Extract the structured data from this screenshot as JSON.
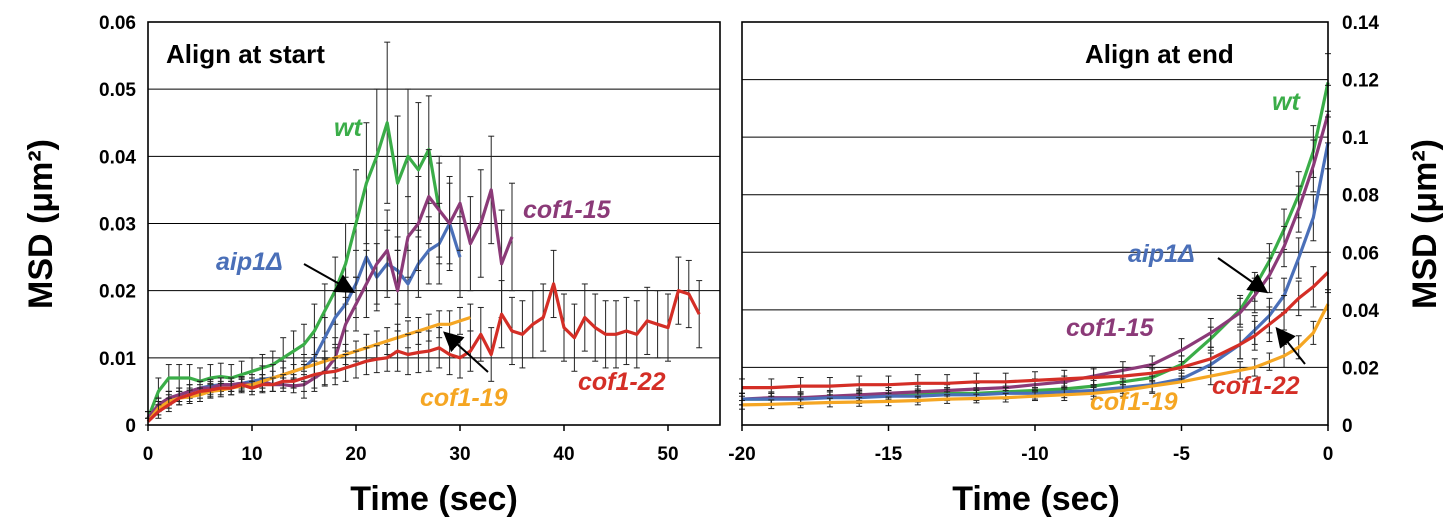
{
  "colors": {
    "wt": "#3aad48",
    "aip1": "#4a6fb8",
    "cof1_15": "#8b3a78",
    "cof1_19": "#f5a623",
    "cof1_22": "#d42e26"
  },
  "chart_data": [
    {
      "type": "line",
      "title": "Align at start",
      "xlabel": "Time (sec)",
      "ylabel": "MSD (μm²)",
      "xlim": [
        0,
        55
      ],
      "ylim": [
        0,
        0.06
      ],
      "xticks": [
        "0",
        "10",
        "20",
        "30",
        "40",
        "50"
      ],
      "yticks": [
        "0",
        "0.01",
        "0.02",
        "0.03",
        "0.04",
        "0.05",
        "0.06"
      ],
      "grid": "horizontal",
      "series": [
        {
          "name": "wt",
          "color": "#3aad48",
          "x": [
            0,
            1,
            2,
            3,
            4,
            5,
            6,
            7,
            8,
            9,
            10,
            11,
            12,
            13,
            14,
            15,
            16,
            17,
            18,
            19,
            20,
            21,
            22,
            23,
            24,
            25,
            26,
            27,
            28
          ],
          "y": [
            0.001,
            0.005,
            0.007,
            0.007,
            0.007,
            0.0065,
            0.007,
            0.0072,
            0.007,
            0.0075,
            0.008,
            0.0085,
            0.009,
            0.01,
            0.011,
            0.012,
            0.014,
            0.017,
            0.02,
            0.024,
            0.03,
            0.036,
            0.04,
            0.045,
            0.036,
            0.04,
            0.038,
            0.041,
            0.032
          ],
          "err": [
            0.001,
            0.002,
            0.002,
            0.002,
            0.002,
            0.002,
            0.002,
            0.002,
            0.002,
            0.002,
            0.002,
            0.002,
            0.002,
            0.003,
            0.003,
            0.003,
            0.004,
            0.004,
            0.005,
            0.006,
            0.008,
            0.009,
            0.01,
            0.012,
            0.01,
            0.01,
            0.01,
            0.008,
            0.008
          ]
        },
        {
          "name": "aip1Δ",
          "color": "#4a6fb8",
          "x": [
            0,
            1,
            2,
            3,
            4,
            5,
            6,
            7,
            8,
            9,
            10,
            11,
            12,
            13,
            14,
            15,
            16,
            17,
            18,
            19,
            20,
            21,
            22,
            23,
            24,
            25,
            26,
            27,
            28,
            29,
            30
          ],
          "y": [
            0.001,
            0.003,
            0.004,
            0.0045,
            0.005,
            0.0055,
            0.0058,
            0.006,
            0.006,
            0.0062,
            0.0065,
            0.0068,
            0.007,
            0.0075,
            0.008,
            0.0085,
            0.01,
            0.013,
            0.016,
            0.018,
            0.021,
            0.025,
            0.022,
            0.024,
            0.023,
            0.021,
            0.024,
            0.026,
            0.027,
            0.03,
            0.025
          ],
          "err": [
            0.001,
            0.001,
            0.001,
            0.001,
            0.001,
            0.001,
            0.001,
            0.001,
            0.001,
            0.001,
            0.001,
            0.002,
            0.002,
            0.002,
            0.002,
            0.002,
            0.003,
            0.003,
            0.004,
            0.004,
            0.005,
            0.005,
            0.005,
            0.005,
            0.005,
            0.005,
            0.005,
            0.005,
            0.006,
            0.006,
            0.006
          ]
        },
        {
          "name": "cof1-15",
          "color": "#8b3a78",
          "x": [
            0,
            1,
            2,
            3,
            4,
            5,
            6,
            7,
            8,
            9,
            10,
            11,
            12,
            13,
            14,
            15,
            16,
            17,
            18,
            19,
            20,
            21,
            22,
            23,
            24,
            25,
            26,
            27,
            28,
            29,
            30,
            31,
            32,
            33,
            34,
            35
          ],
          "y": [
            0.001,
            0.003,
            0.004,
            0.0045,
            0.005,
            0.0055,
            0.0055,
            0.006,
            0.006,
            0.0062,
            0.006,
            0.0065,
            0.006,
            0.006,
            0.0058,
            0.006,
            0.007,
            0.008,
            0.01,
            0.015,
            0.018,
            0.021,
            0.024,
            0.026,
            0.02,
            0.028,
            0.03,
            0.034,
            0.032,
            0.03,
            0.033,
            0.027,
            0.03,
            0.035,
            0.024,
            0.028
          ],
          "err": [
            0.001,
            0.001,
            0.001,
            0.001,
            0.001,
            0.001,
            0.001,
            0.001,
            0.001,
            0.001,
            0.001,
            0.001,
            0.001,
            0.001,
            0.001,
            0.002,
            0.002,
            0.002,
            0.003,
            0.004,
            0.004,
            0.005,
            0.006,
            0.006,
            0.006,
            0.006,
            0.007,
            0.007,
            0.007,
            0.007,
            0.007,
            0.007,
            0.008,
            0.008,
            0.008,
            0.008
          ]
        },
        {
          "name": "cof1-19",
          "color": "#f5a623",
          "x": [
            0,
            1,
            2,
            3,
            4,
            5,
            6,
            7,
            8,
            9,
            10,
            11,
            12,
            13,
            14,
            15,
            16,
            17,
            18,
            19,
            20,
            21,
            22,
            23,
            24,
            25,
            26,
            27,
            28,
            29,
            30,
            31
          ],
          "y": [
            0.0005,
            0.0025,
            0.0035,
            0.004,
            0.0042,
            0.0045,
            0.005,
            0.0052,
            0.0055,
            0.0058,
            0.006,
            0.0065,
            0.007,
            0.0075,
            0.008,
            0.0085,
            0.009,
            0.0095,
            0.01,
            0.0105,
            0.011,
            0.0115,
            0.012,
            0.0125,
            0.013,
            0.0135,
            0.014,
            0.0145,
            0.015,
            0.015,
            0.0155,
            0.016
          ],
          "err": [
            0.0005,
            0.001,
            0.001,
            0.001,
            0.001,
            0.001,
            0.001,
            0.001,
            0.001,
            0.001,
            0.001,
            0.001,
            0.001,
            0.001,
            0.001,
            0.001,
            0.0015,
            0.0015,
            0.0015,
            0.0015,
            0.0015,
            0.002,
            0.002,
            0.002,
            0.002,
            0.002,
            0.002,
            0.002,
            0.002,
            0.002,
            0.002,
            0.002
          ]
        },
        {
          "name": "cof1-22",
          "color": "#d42e26",
          "x": [
            0,
            1,
            2,
            3,
            4,
            5,
            6,
            7,
            8,
            9,
            10,
            11,
            12,
            13,
            14,
            15,
            16,
            17,
            18,
            19,
            20,
            21,
            22,
            23,
            24,
            25,
            26,
            27,
            28,
            29,
            30,
            31,
            32,
            33,
            34,
            35,
            36,
            37,
            38,
            39,
            40,
            41,
            42,
            43,
            44,
            45,
            46,
            47,
            48,
            49,
            50,
            51,
            52,
            53
          ],
          "y": [
            0.0005,
            0.002,
            0.003,
            0.004,
            0.0045,
            0.005,
            0.0052,
            0.0055,
            0.0055,
            0.006,
            0.0055,
            0.006,
            0.006,
            0.0065,
            0.0065,
            0.007,
            0.0075,
            0.0078,
            0.008,
            0.0085,
            0.009,
            0.0095,
            0.0098,
            0.01,
            0.011,
            0.0105,
            0.0108,
            0.011,
            0.0115,
            0.0105,
            0.01,
            0.011,
            0.0135,
            0.0105,
            0.0165,
            0.014,
            0.0135,
            0.015,
            0.016,
            0.021,
            0.0145,
            0.013,
            0.016,
            0.0145,
            0.0135,
            0.0135,
            0.014,
            0.0135,
            0.0155,
            0.015,
            0.0145,
            0.02,
            0.0195,
            0.0165
          ],
          "err": [
            0.0005,
            0.001,
            0.001,
            0.001,
            0.001,
            0.001,
            0.001,
            0.001,
            0.001,
            0.001,
            0.001,
            0.001,
            0.001,
            0.001,
            0.001,
            0.002,
            0.002,
            0.002,
            0.002,
            0.002,
            0.002,
            0.002,
            0.002,
            0.002,
            0.003,
            0.003,
            0.003,
            0.003,
            0.003,
            0.003,
            0.003,
            0.003,
            0.004,
            0.004,
            0.005,
            0.005,
            0.005,
            0.005,
            0.005,
            0.005,
            0.005,
            0.005,
            0.005,
            0.005,
            0.005,
            0.005,
            0.005,
            0.005,
            0.005,
            0.005,
            0.005,
            0.005,
            0.005,
            0.005
          ]
        }
      ]
    },
    {
      "type": "line",
      "title": "Align at end",
      "xlabel": "Time (sec)",
      "ylabel": "MSD (μm²)",
      "xlim": [
        -20,
        0
      ],
      "ylim": [
        0,
        0.14
      ],
      "xticks": [
        "-20",
        "-15",
        "-10",
        "-5",
        "0"
      ],
      "yticks": [
        "0",
        "0.02",
        "0.04",
        "0.06",
        "0.08",
        "0.1",
        "0.12",
        "0.14"
      ],
      "grid": "horizontal",
      "series": [
        {
          "name": "wt",
          "color": "#3aad48",
          "x": [
            -20,
            -19,
            -18,
            -17,
            -16,
            -15,
            -14,
            -13,
            -12,
            -11,
            -10,
            -9,
            -8,
            -7,
            -6,
            -5,
            -4,
            -3,
            -2.5,
            -2,
            -1.5,
            -1,
            -0.5,
            0
          ],
          "y": [
            0.009,
            0.009,
            0.0095,
            0.0095,
            0.01,
            0.01,
            0.0105,
            0.011,
            0.011,
            0.0115,
            0.012,
            0.0125,
            0.0135,
            0.015,
            0.0165,
            0.021,
            0.03,
            0.04,
            0.048,
            0.057,
            0.068,
            0.08,
            0.095,
            0.119
          ],
          "err": [
            0.002,
            0.002,
            0.002,
            0.002,
            0.002,
            0.002,
            0.002,
            0.002,
            0.002,
            0.002,
            0.002,
            0.002,
            0.002,
            0.002,
            0.003,
            0.003,
            0.004,
            0.005,
            0.005,
            0.006,
            0.007,
            0.008,
            0.009,
            0.01
          ]
        },
        {
          "name": "cof1-15",
          "color": "#8b3a78",
          "x": [
            -20,
            -19,
            -18,
            -17,
            -16,
            -15,
            -14,
            -13,
            -12,
            -11,
            -10,
            -9,
            -8,
            -7,
            -6,
            -5,
            -4,
            -3,
            -2.5,
            -2,
            -1.5,
            -1,
            -0.5,
            0
          ],
          "y": [
            0.009,
            0.0095,
            0.0095,
            0.01,
            0.0105,
            0.011,
            0.0115,
            0.012,
            0.0125,
            0.013,
            0.014,
            0.015,
            0.017,
            0.019,
            0.021,
            0.026,
            0.032,
            0.039,
            0.045,
            0.052,
            0.062,
            0.075,
            0.09,
            0.108
          ],
          "err": [
            0.002,
            0.002,
            0.002,
            0.002,
            0.002,
            0.002,
            0.002,
            0.002,
            0.002,
            0.002,
            0.002,
            0.002,
            0.003,
            0.003,
            0.003,
            0.004,
            0.005,
            0.005,
            0.006,
            0.006,
            0.007,
            0.008,
            0.009,
            0.01
          ]
        },
        {
          "name": "aip1Δ",
          "color": "#4a6fb8",
          "x": [
            -20,
            -19,
            -18,
            -17,
            -16,
            -15,
            -14,
            -13,
            -12,
            -11,
            -10,
            -9,
            -8,
            -7,
            -6,
            -5,
            -4,
            -3,
            -2.5,
            -2,
            -1.5,
            -1,
            -0.5,
            0
          ],
          "y": [
            0.009,
            0.009,
            0.009,
            0.0095,
            0.0095,
            0.01,
            0.01,
            0.0105,
            0.0105,
            0.011,
            0.011,
            0.0115,
            0.012,
            0.013,
            0.014,
            0.016,
            0.021,
            0.028,
            0.033,
            0.038,
            0.045,
            0.058,
            0.072,
            0.098
          ],
          "err": [
            0.002,
            0.002,
            0.002,
            0.002,
            0.002,
            0.002,
            0.002,
            0.002,
            0.002,
            0.002,
            0.002,
            0.002,
            0.002,
            0.002,
            0.003,
            0.003,
            0.004,
            0.005,
            0.005,
            0.006,
            0.006,
            0.007,
            0.008,
            0.009
          ]
        },
        {
          "name": "cof1-22",
          "color": "#d42e26",
          "x": [
            -20,
            -19,
            -18,
            -17,
            -16,
            -15,
            -14,
            -13,
            -12,
            -11,
            -10,
            -9,
            -8,
            -7,
            -6,
            -5,
            -4,
            -3,
            -2.5,
            -2,
            -1.5,
            -1,
            -0.5,
            0
          ],
          "y": [
            0.013,
            0.013,
            0.0135,
            0.0135,
            0.014,
            0.014,
            0.0145,
            0.0145,
            0.015,
            0.015,
            0.0155,
            0.016,
            0.0165,
            0.017,
            0.018,
            0.02,
            0.023,
            0.028,
            0.031,
            0.035,
            0.039,
            0.044,
            0.048,
            0.053
          ],
          "err": [
            0.003,
            0.003,
            0.003,
            0.003,
            0.003,
            0.003,
            0.003,
            0.003,
            0.003,
            0.003,
            0.003,
            0.003,
            0.003,
            0.003,
            0.003,
            0.004,
            0.004,
            0.005,
            0.005,
            0.006,
            0.006,
            0.006,
            0.007,
            0.007
          ]
        },
        {
          "name": "cof1-19",
          "color": "#f5a623",
          "x": [
            -20,
            -19,
            -18,
            -17,
            -16,
            -15,
            -14,
            -13,
            -12,
            -11,
            -10,
            -9,
            -8,
            -7,
            -6,
            -5,
            -4,
            -3,
            -2.5,
            -2,
            -1.5,
            -1,
            -0.5,
            0
          ],
          "y": [
            0.007,
            0.0072,
            0.0075,
            0.0078,
            0.008,
            0.0082,
            0.0085,
            0.009,
            0.0092,
            0.0095,
            0.01,
            0.0105,
            0.011,
            0.012,
            0.0135,
            0.015,
            0.017,
            0.019,
            0.02,
            0.022,
            0.024,
            0.027,
            0.032,
            0.042
          ],
          "err": [
            0.0015,
            0.0015,
            0.0015,
            0.0015,
            0.0015,
            0.0015,
            0.0015,
            0.0015,
            0.0015,
            0.0015,
            0.0015,
            0.002,
            0.002,
            0.002,
            0.002,
            0.002,
            0.003,
            0.003,
            0.003,
            0.003,
            0.004,
            0.004,
            0.004,
            0.005
          ]
        }
      ]
    }
  ]
}
